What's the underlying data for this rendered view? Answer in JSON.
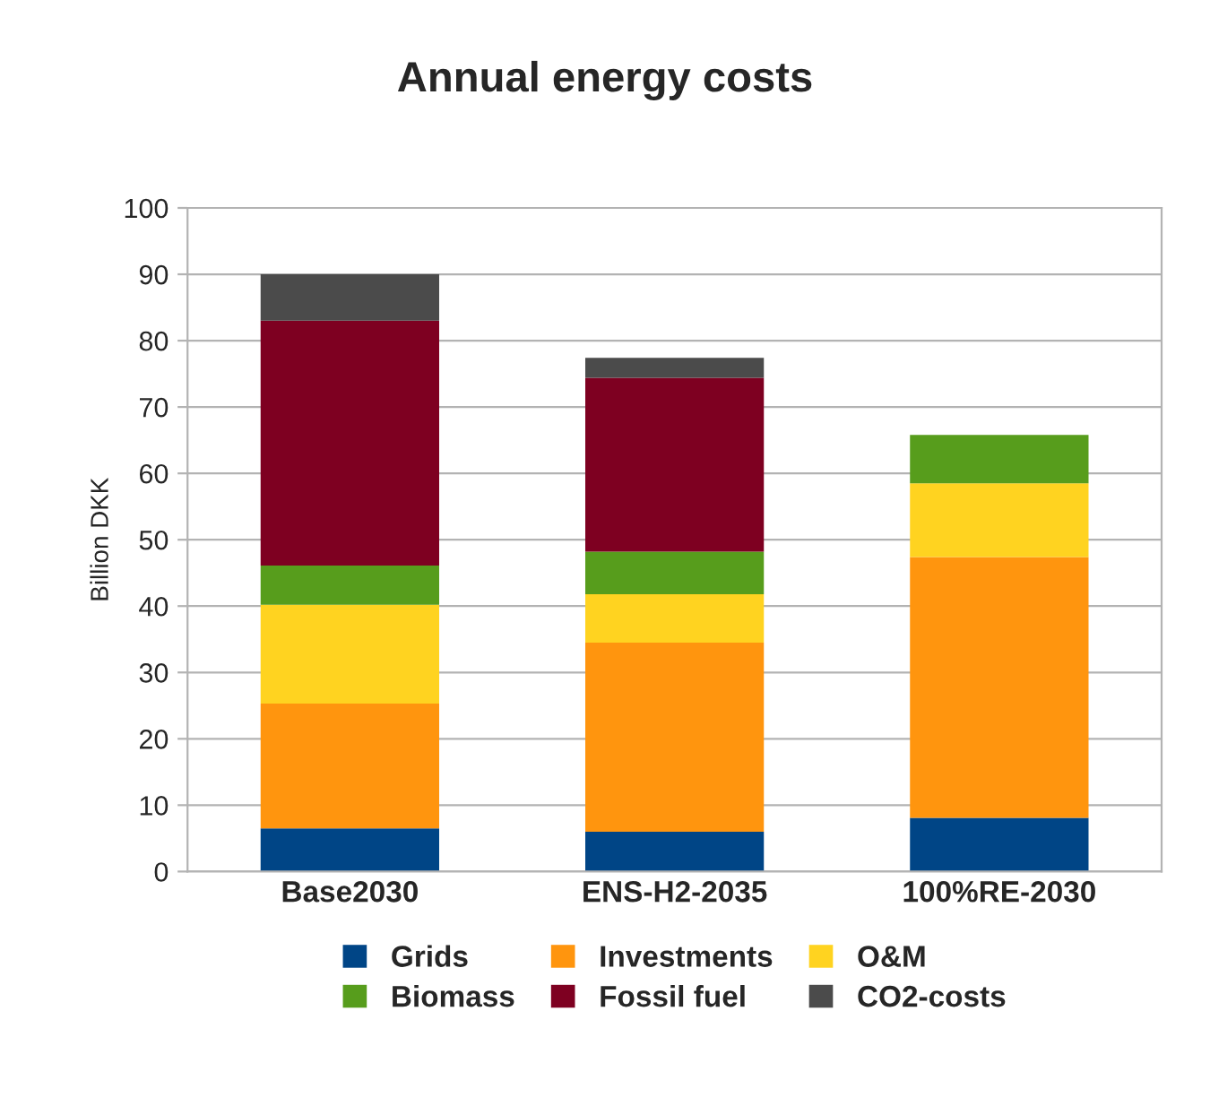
{
  "chart_data": {
    "type": "bar",
    "title": "Annual energy costs",
    "ylabel": "Billion DKK",
    "categories": [
      "Base2030",
      "ENS-H2-2035",
      "100%RE-2030"
    ],
    "stacked": true,
    "series": [
      {
        "name": "Grids",
        "color": "#004586",
        "values": [
          6.5,
          6.0,
          8.1
        ]
      },
      {
        "name": "Investments",
        "color": "#ff950e",
        "values": [
          18.8,
          28.5,
          39.3
        ]
      },
      {
        "name": "O&M",
        "color": "#ffd320",
        "values": [
          14.9,
          7.3,
          11.1
        ]
      },
      {
        "name": "Biomass",
        "color": "#579d1c",
        "values": [
          5.9,
          6.4,
          7.3
        ]
      },
      {
        "name": "Fossil fuel",
        "color": "#7e0021",
        "values": [
          36.9,
          26.2,
          null
        ]
      },
      {
        "name": "CO2-costs",
        "color": "#4b4b4b",
        "values": [
          7.0,
          3.0,
          null
        ]
      }
    ],
    "ylim": [
      0,
      100
    ],
    "yticks": [
      0,
      10,
      20,
      30,
      40,
      50,
      60,
      70,
      80,
      90,
      100
    ],
    "grid": "y",
    "legend": "bottom"
  }
}
